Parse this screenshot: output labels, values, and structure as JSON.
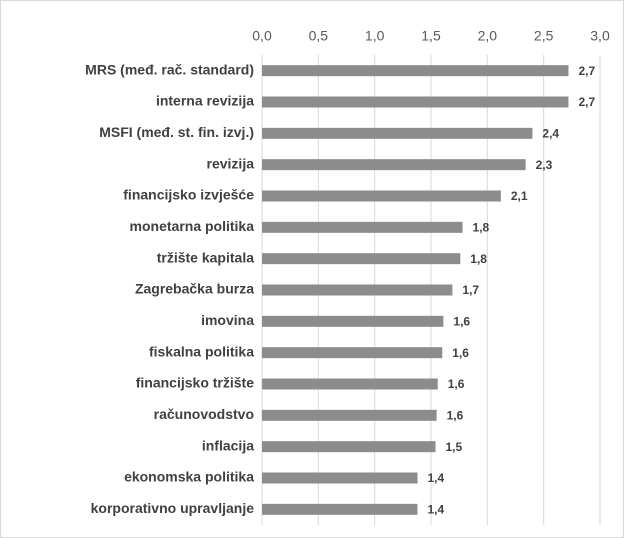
{
  "chart_data": {
    "type": "bar",
    "orientation": "horizontal",
    "categories": [
      "MRS (međ. rač. standard)",
      "interna revizija",
      "MSFI (međ. st. fin. izvj.)",
      "revizija",
      "financijsko izvješće",
      "monetarna politika",
      "tržište kapitala",
      "Zagrebačka burza",
      "imovina",
      "fiskalna politika",
      "financijsko tržište",
      "računovodstvo",
      "inflacija",
      "ekonomska politika",
      "korporativno upravljanje"
    ],
    "values": [
      2.72,
      2.72,
      2.4,
      2.34,
      2.12,
      1.78,
      1.76,
      1.69,
      1.61,
      1.6,
      1.56,
      1.55,
      1.54,
      1.38,
      1.38
    ],
    "value_labels": [
      "2,7",
      "2,7",
      "2,4",
      "2,3",
      "2,1",
      "1,8",
      "1,8",
      "1,7",
      "1,6",
      "1,6",
      "1,6",
      "1,6",
      "1,5",
      "1,4",
      "1,4"
    ],
    "color": "#8c8c8c",
    "xlim": [
      0,
      3
    ],
    "xticks": [
      {
        "value": 0,
        "label": "0,0"
      },
      {
        "value": 0.5,
        "label": "0,5"
      },
      {
        "value": 1,
        "label": "1,0"
      },
      {
        "value": 1.5,
        "label": "1,5"
      },
      {
        "value": 2,
        "label": "2,0"
      },
      {
        "value": 2.5,
        "label": "2,5"
      },
      {
        "value": 3,
        "label": "3,0"
      }
    ],
    "grid": true
  }
}
